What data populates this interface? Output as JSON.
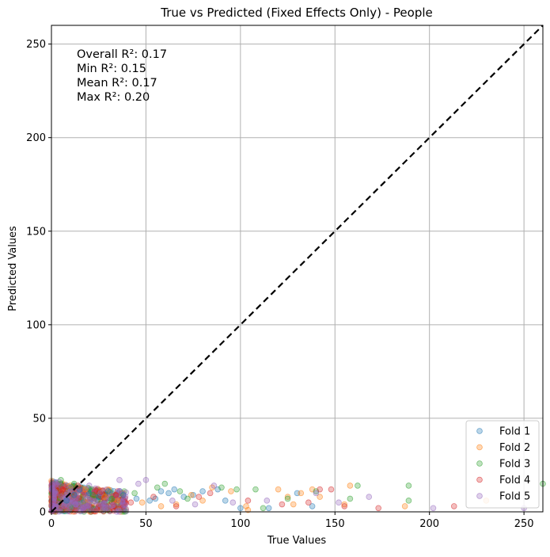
{
  "chart_data": {
    "type": "scatter",
    "title": "True vs Predicted (Fixed Effects Only) - People",
    "xlabel": "True Values",
    "ylabel": "Predicted Values",
    "xlim": [
      0,
      260
    ],
    "ylim": [
      0,
      260
    ],
    "xticks": [
      "0",
      "50",
      "100",
      "150",
      "200",
      "250"
    ],
    "yticks": [
      "0",
      "50",
      "100",
      "150",
      "200",
      "250"
    ],
    "grid": true,
    "legend_position": "lower-right",
    "reference_line": {
      "style": "dashed",
      "color": "#000000",
      "from": [
        0,
        0
      ],
      "to": [
        260,
        260
      ]
    },
    "annotations": [
      "Overall R²: 0.17",
      "Min R²: 0.15",
      "Mean R²: 0.17",
      "Max R²: 0.20"
    ],
    "series": [
      {
        "name": "Fold 1",
        "color": "#1f77b4",
        "points": [
          [
            8,
            6
          ],
          [
            12,
            9
          ],
          [
            15,
            12
          ],
          [
            20,
            10
          ],
          [
            25,
            8
          ],
          [
            30,
            11
          ],
          [
            38,
            9
          ],
          [
            45,
            7
          ],
          [
            52,
            6
          ],
          [
            55,
            7
          ],
          [
            58,
            11
          ],
          [
            62,
            10
          ],
          [
            65,
            12
          ],
          [
            70,
            8
          ],
          [
            75,
            9
          ],
          [
            80,
            11
          ],
          [
            88,
            12
          ],
          [
            92,
            6
          ],
          [
            100,
            2
          ],
          [
            115,
            2
          ],
          [
            130,
            10
          ],
          [
            138,
            3
          ]
        ]
      },
      {
        "name": "Fold 2",
        "color": "#ff7f0e",
        "points": [
          [
            10,
            14
          ],
          [
            18,
            12
          ],
          [
            28,
            8
          ],
          [
            35,
            6
          ],
          [
            48,
            5
          ],
          [
            58,
            3
          ],
          [
            66,
            4
          ],
          [
            74,
            9
          ],
          [
            80,
            6
          ],
          [
            85,
            13
          ],
          [
            95,
            11
          ],
          [
            103,
            3
          ],
          [
            104,
            1
          ],
          [
            120,
            12
          ],
          [
            125,
            8
          ],
          [
            128,
            4
          ],
          [
            132,
            10
          ],
          [
            138,
            12
          ],
          [
            142,
            8
          ],
          [
            155,
            4
          ],
          [
            158,
            14
          ],
          [
            187,
            3
          ],
          [
            230,
            6
          ]
        ]
      },
      {
        "name": "Fold 3",
        "color": "#2ca02c",
        "points": [
          [
            5,
            17
          ],
          [
            12,
            15
          ],
          [
            22,
            9
          ],
          [
            32,
            7
          ],
          [
            44,
            10
          ],
          [
            56,
            13
          ],
          [
            60,
            15
          ],
          [
            68,
            11
          ],
          [
            72,
            7
          ],
          [
            90,
            13
          ],
          [
            98,
            12
          ],
          [
            108,
            12
          ],
          [
            112,
            2
          ],
          [
            125,
            7
          ],
          [
            140,
            11
          ],
          [
            158,
            7
          ],
          [
            162,
            14
          ],
          [
            189,
            14
          ],
          [
            189,
            6
          ],
          [
            260,
            15
          ]
        ]
      },
      {
        "name": "Fold 4",
        "color": "#d62728",
        "points": [
          [
            6,
            12
          ],
          [
            14,
            14
          ],
          [
            24,
            11
          ],
          [
            34,
            9
          ],
          [
            42,
            5
          ],
          [
            54,
            8
          ],
          [
            66,
            3
          ],
          [
            78,
            8
          ],
          [
            84,
            10
          ],
          [
            104,
            6
          ],
          [
            122,
            4
          ],
          [
            136,
            5
          ],
          [
            142,
            12
          ],
          [
            148,
            12
          ],
          [
            155,
            3
          ],
          [
            173,
            2
          ],
          [
            213,
            3
          ]
        ]
      },
      {
        "name": "Fold 5",
        "color": "#9467bd",
        "points": [
          [
            4,
            16
          ],
          [
            10,
            13
          ],
          [
            20,
            14
          ],
          [
            26,
            10
          ],
          [
            36,
            17
          ],
          [
            46,
            15
          ],
          [
            50,
            17
          ],
          [
            64,
            6
          ],
          [
            76,
            4
          ],
          [
            86,
            14
          ],
          [
            96,
            5
          ],
          [
            114,
            6
          ],
          [
            140,
            10
          ],
          [
            152,
            5
          ],
          [
            168,
            8
          ],
          [
            202,
            2
          ],
          [
            250,
            2
          ]
        ]
      }
    ],
    "dense_cluster": {
      "x_range": [
        0,
        40
      ],
      "y_range": [
        0,
        17
      ]
    }
  }
}
